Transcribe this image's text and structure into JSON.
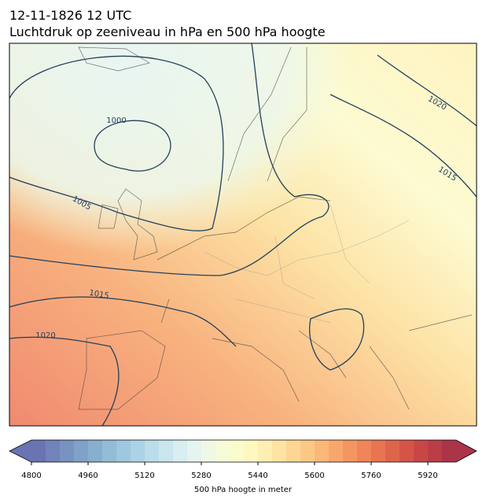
{
  "header": {
    "time": "12-11-1826 12 UTC",
    "title": "Luchtdruk op zeeniveau in hPa en 500 hPa hoogte"
  },
  "contour_labels": [
    "1000",
    "1005",
    "1015",
    "1020",
    "1015",
    "1020"
  ],
  "colorbar": {
    "label": "500 hPa hoogte in meter",
    "lim": [
      4800,
      6000
    ],
    "ticks": [
      4800,
      4960,
      5120,
      5280,
      5440,
      5600,
      5760,
      5920
    ],
    "colors": [
      "#6a74b3",
      "#7083ba",
      "#7892c1",
      "#80a1c8",
      "#89afcf",
      "#93bcd6",
      "#9fc8de",
      "#acd3e5",
      "#badde9",
      "#c9e6ee",
      "#d8eef1",
      "#e5f4ef",
      "#eff8e4",
      "#f6fbd8",
      "#fbfccd",
      "#fef8c0",
      "#feeeb1",
      "#fee3a2",
      "#fdd693",
      "#fcc886",
      "#fbb878",
      "#f8a76c",
      "#f49662",
      "#ef8559",
      "#e87452",
      "#df644c",
      "#d45548",
      "#c84746",
      "#bb3d47",
      "#ac3449"
    ]
  }
}
